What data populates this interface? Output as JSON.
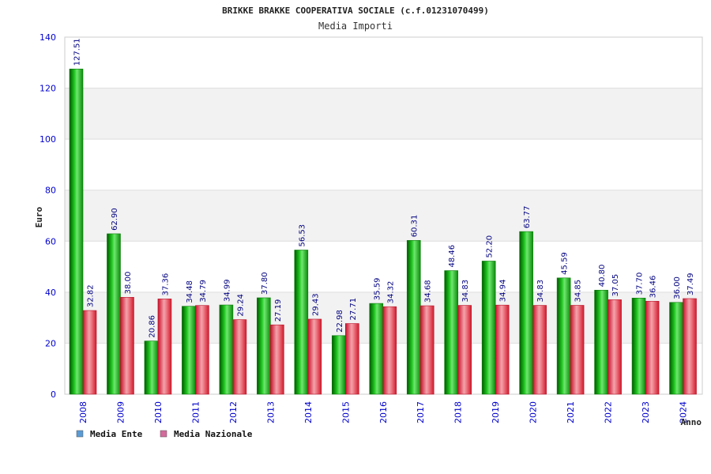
{
  "chart_data": {
    "type": "bar",
    "title": "BRIKKE BRAKKE COOPERATIVA SOCIALE (c.f.01231070499)",
    "subtitle": "Media Importi",
    "xlabel": "Anno",
    "ylabel": "Euro",
    "ylim": [
      0,
      140
    ],
    "yticks": [
      0,
      20,
      40,
      60,
      80,
      100,
      120,
      140
    ],
    "grid": true,
    "legend_position": "bottom-left",
    "categories": [
      "2008",
      "2009",
      "2010",
      "2011",
      "2012",
      "2013",
      "2014",
      "2015",
      "2016",
      "2017",
      "2018",
      "2019",
      "2020",
      "2021",
      "2022",
      "2023",
      "2024"
    ],
    "series": [
      {
        "name": "Media Ente",
        "legend_color": "#5b9bd5",
        "bar_color": "#1a9e1a",
        "values": [
          127.51,
          62.9,
          20.86,
          34.48,
          34.99,
          37.8,
          56.53,
          22.98,
          35.59,
          60.31,
          48.46,
          52.2,
          63.77,
          45.59,
          40.8,
          37.7,
          36.0
        ],
        "labels": [
          "127.51",
          "62.90",
          "20.86",
          "34.48",
          "34.99",
          "37.80",
          "56.53",
          "22.98",
          "35.59",
          "60.31",
          "48.46",
          "52.20",
          "63.77",
          "45.59",
          "40.80",
          "37.70",
          "36.00"
        ]
      },
      {
        "name": "Media Nazionale",
        "legend_color": "#d36b9c",
        "bar_color": "#dd2b3b",
        "values": [
          32.82,
          38.0,
          37.36,
          34.79,
          29.24,
          27.19,
          29.43,
          27.71,
          34.32,
          34.68,
          34.83,
          34.94,
          34.83,
          34.85,
          37.05,
          36.46,
          37.49
        ],
        "labels": [
          "32.82",
          "38.00",
          "37.36",
          "34.79",
          "29.24",
          "27.19",
          "29.43",
          "27.71",
          "34.32",
          "34.68",
          "34.83",
          "34.94",
          "34.83",
          "34.85",
          "37.05",
          "36.46",
          "37.49"
        ]
      }
    ]
  }
}
